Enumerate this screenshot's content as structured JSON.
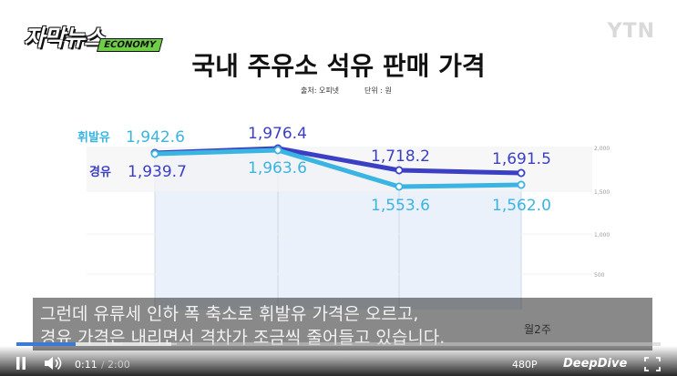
{
  "brand": {
    "logo_text": "자막뉴스",
    "logo_sub": "ECONOMY",
    "channel": "YTN"
  },
  "header": {
    "title": "국내 주유소 석유 판매 가격",
    "source": "출처: 오피넷",
    "unit": "단위 : 원"
  },
  "chart_data": {
    "type": "line",
    "title": "국내 주유소 석유 판매 가격",
    "ylabel": "",
    "xlabel": "",
    "categories": [
      "",
      "",
      "",
      "월2주"
    ],
    "ylim": [
      500,
      2000
    ],
    "y_ticks": [
      "2,000",
      "1,500",
      "1,000",
      "500"
    ],
    "series": [
      {
        "name": "휘발유",
        "values": [
          1942.6,
          1976.4,
          1718.2,
          1691.5
        ],
        "labels": [
          "1,942.6",
          "1,976.4",
          "1,718.2",
          "1,691.5"
        ],
        "color": "#3b3fc4"
      },
      {
        "name": "경유",
        "values": [
          1939.7,
          1963.6,
          1553.6,
          1562.0
        ],
        "labels": [
          "1,939.7",
          "1,963.6",
          "1,553.6",
          "1,562.0"
        ],
        "color": "#3ab4e0"
      }
    ]
  },
  "subtitle": {
    "line1": "그런데 유류세 인하 폭 축소로 휘발유 가격은 오르고,",
    "line2": "경유 가격은 내리면서 격차가 조금씩 줄어들고 있습니다."
  },
  "player": {
    "current_time": "0:11",
    "separator": "/",
    "total_time": "2:00",
    "quality": "480P",
    "brand": "DeepDive",
    "progress": 0.092,
    "buffered": 0.24,
    "play_icon": "pause-icon",
    "volume_icon": "volume-icon",
    "fullscreen_icon": "fullscreen-icon"
  }
}
